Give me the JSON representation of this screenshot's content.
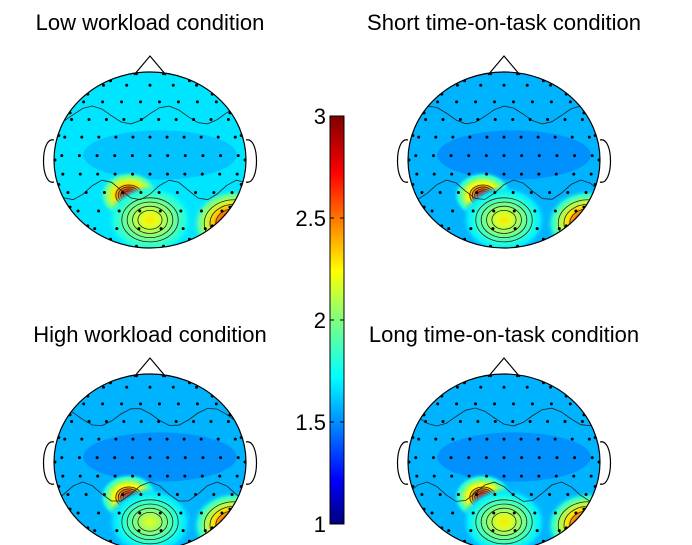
{
  "chart_data": {
    "type": "heatmap",
    "colormap": "jet",
    "colorbar": {
      "min": 1,
      "max": 3,
      "ticks": [
        1,
        1.5,
        2,
        2.5,
        3
      ],
      "tick_labels": [
        "1",
        "1.5",
        "2",
        "2.5",
        "3"
      ]
    },
    "maps": [
      {
        "title": "Low workload condition",
        "background_value": 1.7,
        "hotspots": [
          {
            "region": "left-parietal",
            "value": 2.9
          },
          {
            "region": "parietal-midline",
            "value": 2.3
          },
          {
            "region": "right-occipital",
            "value": 3.0
          }
        ]
      },
      {
        "title": "Short time-on-task condition",
        "background_value": 1.6,
        "hotspots": [
          {
            "region": "left-parietal",
            "value": 2.9
          },
          {
            "region": "parietal-midline",
            "value": 2.3
          },
          {
            "region": "right-occipital",
            "value": 3.0
          }
        ]
      },
      {
        "title": "High workload condition",
        "background_value": 1.6,
        "hotspots": [
          {
            "region": "left-parietal",
            "value": 2.9
          },
          {
            "region": "parietal-midline",
            "value": 2.2
          },
          {
            "region": "right-occipital",
            "value": 3.0
          }
        ]
      },
      {
        "title": "Long time-on-task condition",
        "background_value": 1.6,
        "hotspots": [
          {
            "region": "left-parietal",
            "value": 2.9
          },
          {
            "region": "parietal-midline",
            "value": 2.3
          },
          {
            "region": "right-occipital",
            "value": 3.0
          }
        ]
      }
    ]
  }
}
